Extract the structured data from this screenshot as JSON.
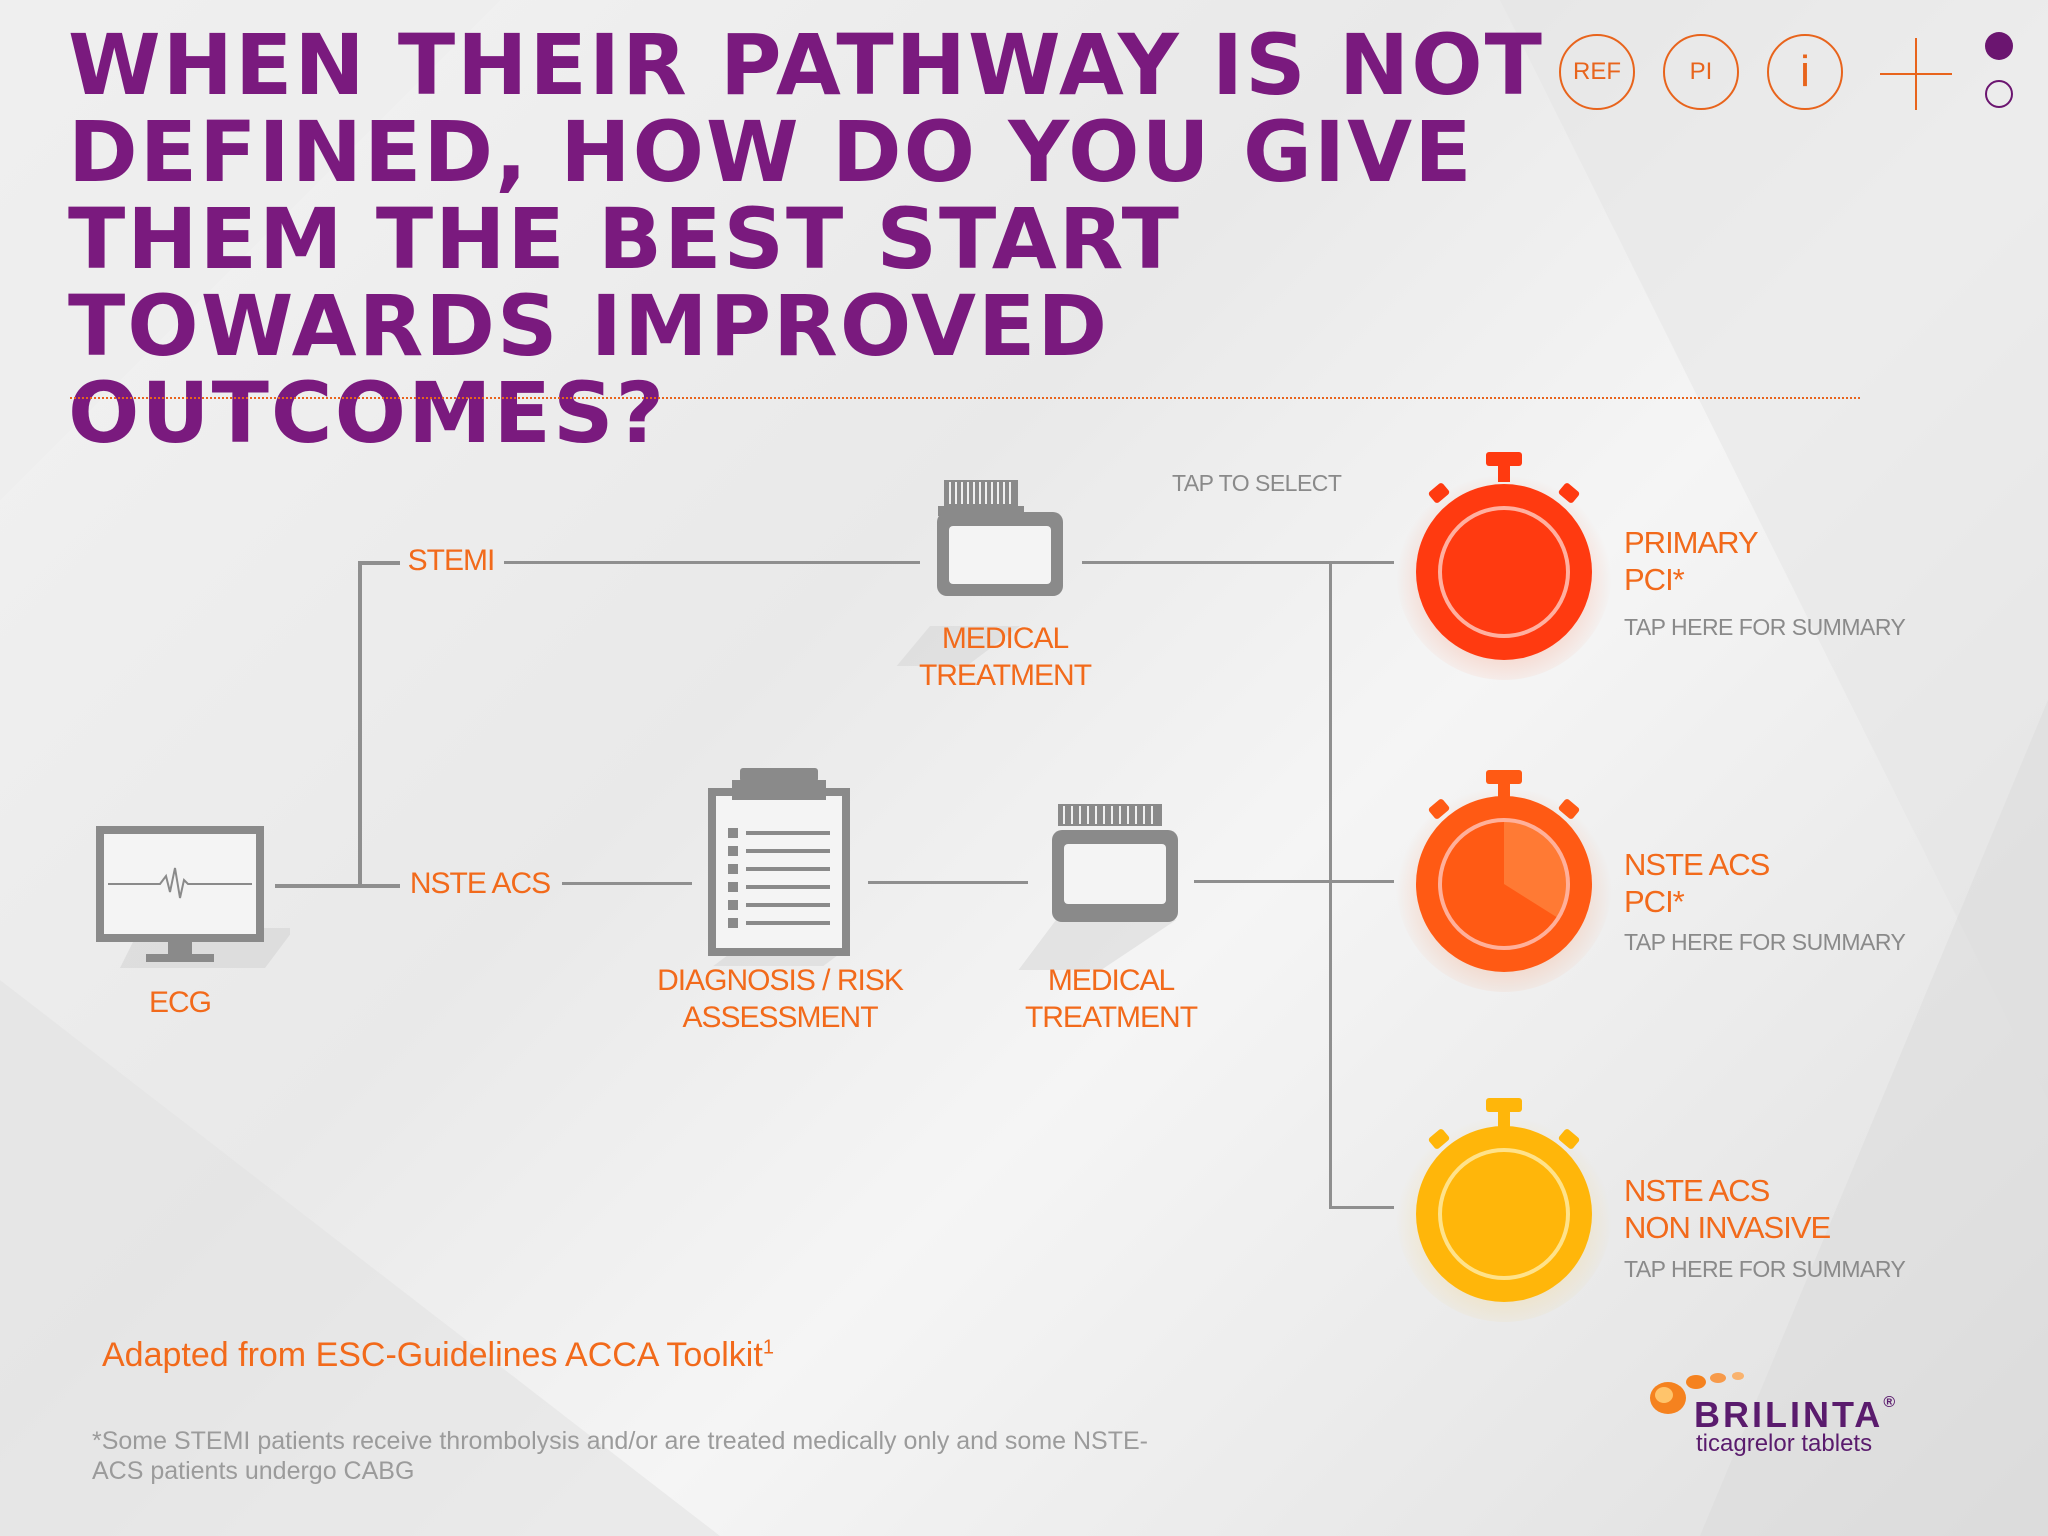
{
  "header": {
    "title": "WHEN THEIR PATHWAY IS NOT DEFINED, HOW DO YOU GIVE THEM THE BEST START TOWARDS IMPROVED OUTCOMES?",
    "buttons": {
      "ref": "REF",
      "pi": "PI",
      "info": "i"
    }
  },
  "pagination": {
    "total": 2,
    "current": 1
  },
  "diagram": {
    "tap_to_select": "TAP TO SELECT",
    "ecg": "ECG",
    "stemi": "STEMI",
    "nste_acs": "NSTE ACS",
    "medical_treatment_top": [
      "MEDICAL",
      "TREATMENT"
    ],
    "diagnosis": [
      "DIAGNOSIS / RISK",
      "ASSESSMENT"
    ],
    "medical_treatment_bottom": [
      "MEDICAL",
      "TREATMENT"
    ],
    "outcomes": [
      {
        "line1": "PRIMARY",
        "line2": "PCI*",
        "link": "TAP HERE FOR SUMMARY",
        "color": "#ff3a10"
      },
      {
        "line1": "NSTE ACS",
        "line2": "PCI*",
        "link": "TAP HERE FOR SUMMARY",
        "color": "#ff5a14"
      },
      {
        "line1": "NSTE ACS",
        "line2": "NON INVASIVE",
        "link": "TAP HERE FOR SUMMARY",
        "color": "#ffb60a"
      }
    ]
  },
  "source": {
    "text": "Adapted from ESC-Guidelines ACCA Toolkit",
    "sup": "1"
  },
  "footnote": "*Some STEMI patients receive thrombolysis and/or are treated medically only and some NSTE-ACS patients undergo CABG",
  "logo": {
    "brand": "BRILINTA",
    "mark": "®",
    "tagline": "ticagrelor tablets"
  },
  "colors": {
    "title": "#7a1a7e",
    "accent": "#e8641c",
    "line": "#8f8f8f"
  }
}
